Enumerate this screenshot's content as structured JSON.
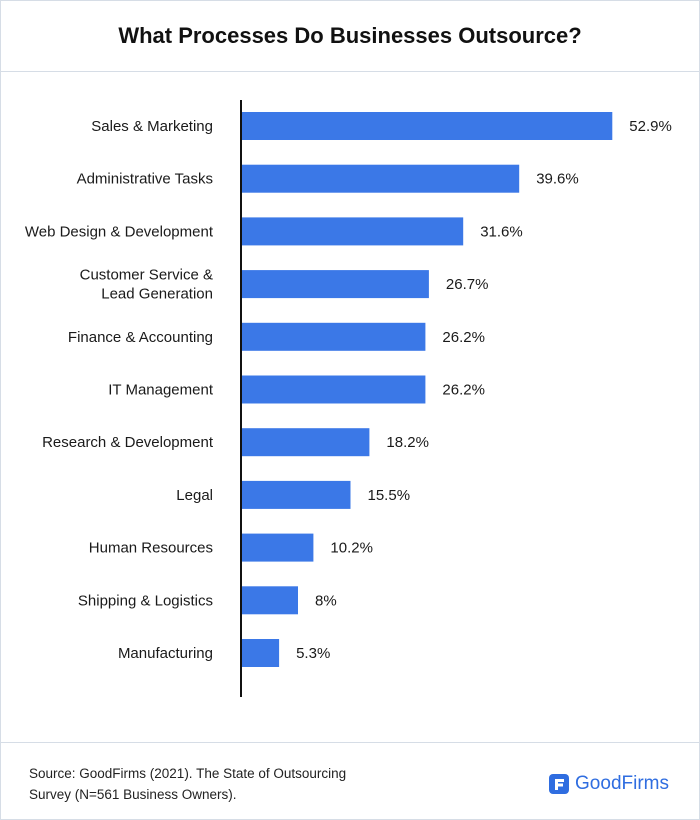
{
  "header": {
    "title": "What Processes Do Businesses Outsource?"
  },
  "chart_data": {
    "type": "bar",
    "orientation": "horizontal",
    "title": "What Processes Do Businesses Outsource?",
    "categories": [
      [
        "Sales & Marketing"
      ],
      [
        "Administrative Tasks"
      ],
      [
        "Web Design & Development"
      ],
      [
        "Customer Service &",
        "Lead Generation"
      ],
      [
        "Finance & Accounting"
      ],
      [
        "IT Management"
      ],
      [
        "Research & Development"
      ],
      [
        "Legal"
      ],
      [
        "Human Resources"
      ],
      [
        "Shipping & Logistics"
      ],
      [
        "Manufacturing"
      ]
    ],
    "values": [
      52.9,
      39.6,
      31.6,
      26.7,
      26.2,
      26.2,
      18.2,
      15.5,
      10.2,
      8,
      5.3
    ],
    "value_labels": [
      "52.9%",
      "39.6%",
      "31.6%",
      "26.7%",
      "26.2%",
      "26.2%",
      "18.2%",
      "15.5%",
      "10.2%",
      "8%",
      "5.3%"
    ],
    "bar_color": "#3b78e7",
    "grid": false,
    "legend": "none"
  },
  "footer": {
    "source": "Source: GoodFirms (2021). The State of Outsourcing Survey (N=561 Business Owners).",
    "brand_name": "GoodFirms",
    "brand_icon": "goodfirms-logo-icon",
    "brand_color": "#2f6de0"
  }
}
